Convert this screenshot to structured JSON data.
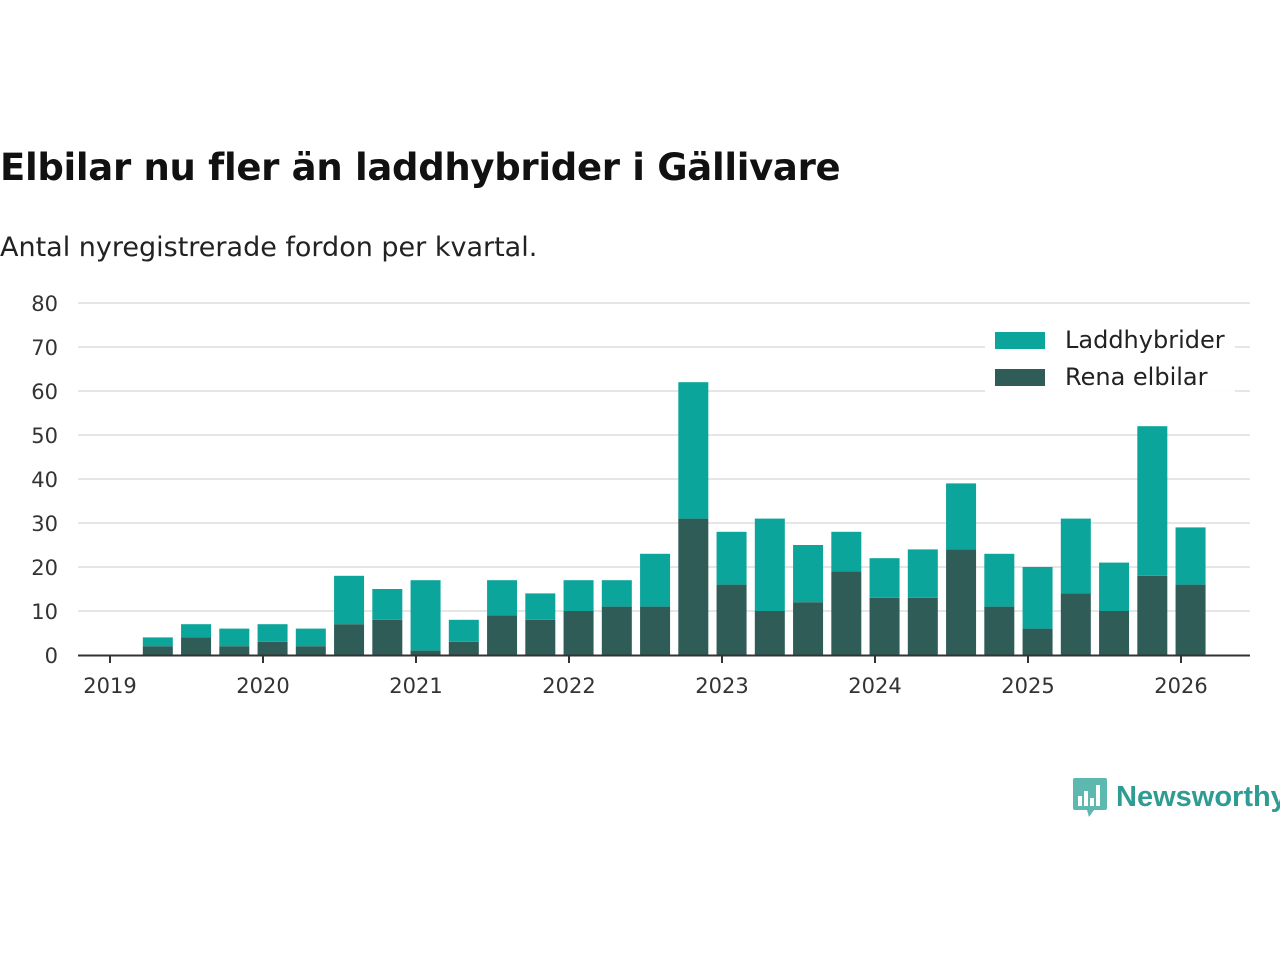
{
  "header": {
    "title": "Elbilar nu fler än laddhybrider i Gällivare",
    "subtitle": "Antal nyregistrerade fordon per kvartal."
  },
  "brand": {
    "name": "Newsworthy",
    "color": "#2f9c93"
  },
  "colors": {
    "laddhybrider": "#0ba59b",
    "elbilar": "#305c57",
    "grid": "#dddddd",
    "axis": "#333333"
  },
  "chart_data": {
    "type": "bar",
    "stacked": true,
    "title": "Elbilar nu fler än laddhybrider i Gällivare",
    "subtitle": "Antal nyregistrerade fordon per kvartal.",
    "xlabel": "",
    "ylabel": "",
    "ylim": [
      0,
      80
    ],
    "yticks": [
      0,
      10,
      20,
      30,
      40,
      50,
      60,
      70,
      80
    ],
    "xticks": [
      "2019",
      "2020",
      "2021",
      "2022",
      "2023",
      "2024",
      "2025",
      "2026"
    ],
    "grid": true,
    "legend_position": "top-right",
    "categories": [
      "2019 Q2",
      "2019 Q3",
      "2019 Q4",
      "2020 Q1",
      "2020 Q2",
      "2020 Q3",
      "2020 Q4",
      "2021 Q1",
      "2021 Q2",
      "2021 Q3",
      "2021 Q4",
      "2022 Q1",
      "2022 Q2",
      "2022 Q3",
      "2022 Q4",
      "2023 Q1",
      "2023 Q2",
      "2023 Q3",
      "2023 Q4",
      "2024 Q1",
      "2024 Q2",
      "2024 Q3",
      "2024 Q4",
      "2025 Q1",
      "2025 Q2",
      "2025 Q3",
      "2025 Q4",
      "2026 Q1"
    ],
    "series": [
      {
        "name": "Rena elbilar",
        "color": "#305c57",
        "values": [
          2,
          4,
          2,
          3,
          2,
          7,
          8,
          1,
          3,
          9,
          8,
          10,
          11,
          11,
          31,
          16,
          10,
          12,
          19,
          13,
          13,
          24,
          11,
          6,
          14,
          10,
          18,
          16
        ]
      },
      {
        "name": "Laddhybrider",
        "color": "#0ba59b",
        "values": [
          2,
          3,
          4,
          4,
          4,
          11,
          7,
          16,
          5,
          8,
          6,
          7,
          6,
          12,
          31,
          12,
          21,
          13,
          9,
          9,
          11,
          15,
          12,
          14,
          17,
          11,
          34,
          13
        ]
      }
    ]
  }
}
